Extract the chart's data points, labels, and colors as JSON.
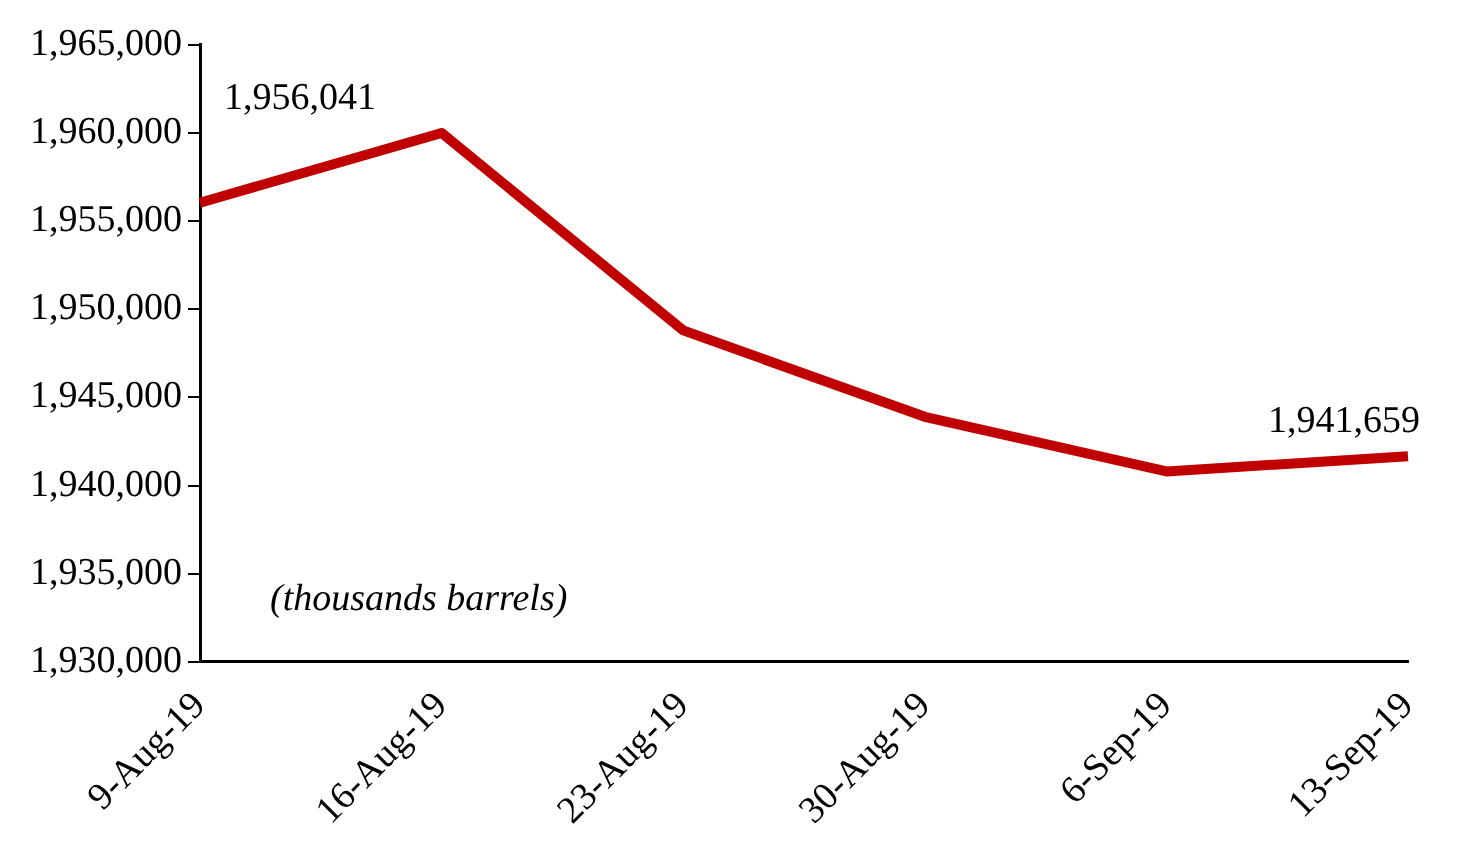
{
  "chart_data": {
    "type": "line",
    "categories": [
      "9-Aug-19",
      "16-Aug-19",
      "23-Aug-19",
      "30-Aug-19",
      "6-Sep-19",
      "13-Sep-19"
    ],
    "series": [
      {
        "color": "#c00000",
        "values": [
          1956041,
          1960000,
          1948800,
          1943900,
          1940800,
          1941659
        ],
        "value_labels": [
          "1,956,041",
          null,
          null,
          null,
          null,
          "1,941,659"
        ]
      }
    ],
    "ylim": [
      1930000,
      1965000
    ],
    "yticks": [
      {
        "value": 1930000,
        "label": "1,930,000"
      },
      {
        "value": 1935000,
        "label": "1,935,000"
      },
      {
        "value": 1940000,
        "label": "1,940,000"
      },
      {
        "value": 1945000,
        "label": "1,945,000"
      },
      {
        "value": 1950000,
        "label": "1,950,000"
      },
      {
        "value": 1955000,
        "label": "1,955,000"
      },
      {
        "value": 1960000,
        "label": "1,960,000"
      },
      {
        "value": 1965000,
        "label": "1,965,000"
      }
    ],
    "annotations": [
      "(thousands barrels)"
    ],
    "grid": false,
    "legend": false,
    "marker": "none",
    "line_style": "solid"
  }
}
